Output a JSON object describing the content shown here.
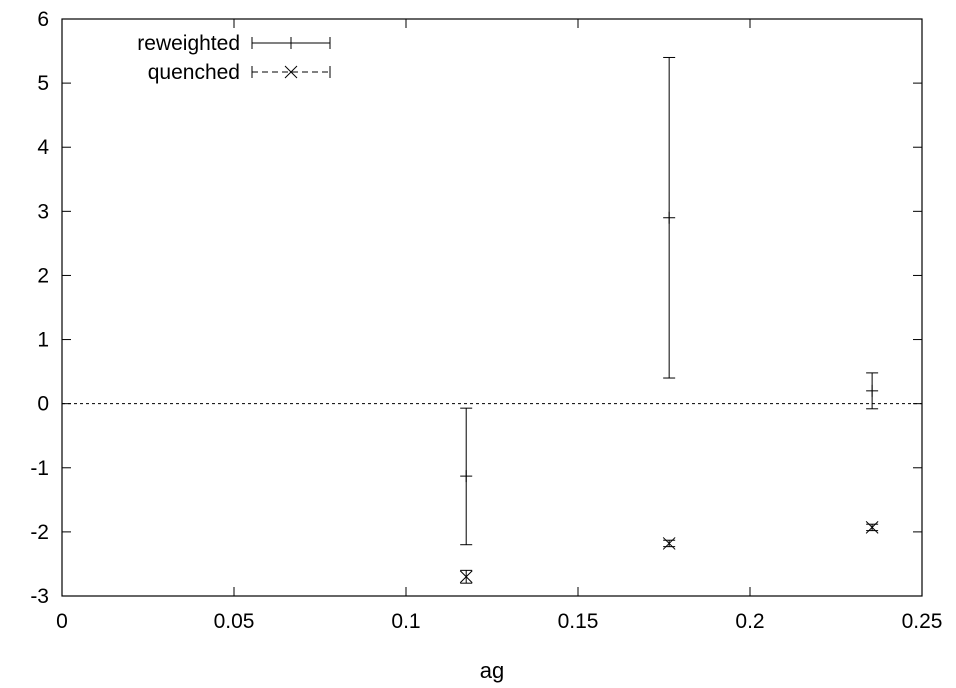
{
  "chart_data": {
    "type": "scatter",
    "title": "",
    "xlabel": "ag",
    "ylabel": "",
    "xlim": [
      0,
      0.25
    ],
    "ylim": [
      -3,
      6
    ],
    "xticks": [
      "0",
      "0.05",
      "0.1",
      "0.15",
      "0.2",
      "0.25"
    ],
    "yticks": [
      "-3",
      "-2",
      "-1",
      "0",
      "1",
      "2",
      "3",
      "4",
      "5",
      "6"
    ],
    "xtick_values": [
      0,
      0.05,
      0.1,
      0.15,
      0.2,
      0.25
    ],
    "ytick_values": [
      -3,
      -2,
      -1,
      0,
      1,
      2,
      3,
      4,
      5,
      6
    ],
    "grid": false,
    "legend_position": "top-left",
    "reference_line": {
      "y": 0,
      "style": "dotted"
    },
    "series": [
      {
        "name": "reweighted",
        "marker": "plus",
        "line_style": "solid",
        "points": [
          {
            "x": 0.1175,
            "y": -1.13,
            "ylow": -2.2,
            "yhigh": -0.07
          },
          {
            "x": 0.1765,
            "y": 2.9,
            "ylow": 0.4,
            "yhigh": 5.4
          },
          {
            "x": 0.2355,
            "y": 0.2,
            "ylow": -0.08,
            "yhigh": 0.48
          }
        ]
      },
      {
        "name": "quenched",
        "marker": "cross",
        "line_style": "dashed",
        "points": [
          {
            "x": 0.1175,
            "y": -2.7,
            "ylow": -2.8,
            "yhigh": -2.6
          },
          {
            "x": 0.1765,
            "y": -2.18,
            "ylow": -2.23,
            "yhigh": -2.13
          },
          {
            "x": 0.2355,
            "y": -1.93,
            "ylow": -1.98,
            "yhigh": -1.88
          }
        ]
      }
    ]
  }
}
